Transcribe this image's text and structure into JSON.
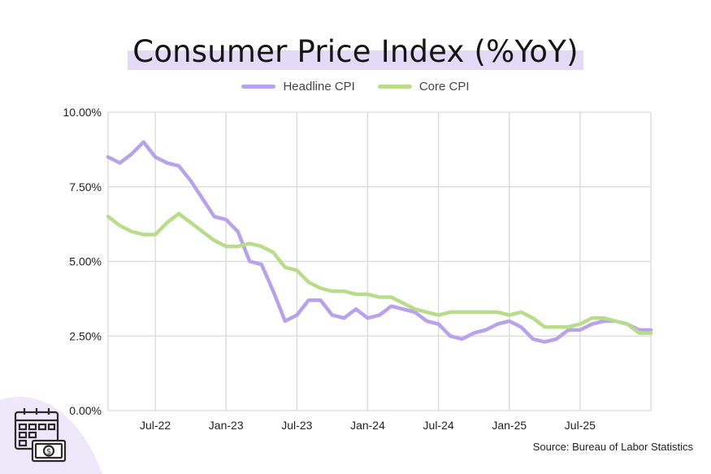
{
  "colors": {
    "headline": "#b9a2ec",
    "core": "#b8dc8a",
    "grid": "#d9d9d9",
    "highlight": "#e3daf7"
  },
  "icons": [
    "calendar-icon",
    "dollar-bill-icon"
  ],
  "source": "Source: Bureau of Labor Statistics",
  "chart_data": {
    "type": "line",
    "title": "Consumer Price Index (%YoY)",
    "xlabel": "",
    "ylabel": "",
    "ylim": [
      0,
      10
    ],
    "y_ticks": [
      0,
      2.5,
      5,
      7.5,
      10
    ],
    "y_tick_labels": [
      "0.00%",
      "2.50%",
      "5.00%",
      "7.50%",
      "10.00%"
    ],
    "x_start": "Mar-22",
    "x_ticks": [
      {
        "index": 4,
        "label": "Jul-22"
      },
      {
        "index": 10,
        "label": "Jan-23"
      },
      {
        "index": 16,
        "label": "Jul-23"
      },
      {
        "index": 22,
        "label": "Jan-24"
      },
      {
        "index": 28,
        "label": "Jul-24"
      },
      {
        "index": 34,
        "label": "Jan-25"
      },
      {
        "index": 40,
        "label": "Jul-25"
      }
    ],
    "legend": [
      "Headline CPI",
      "Core CPI"
    ],
    "series": [
      {
        "name": "Headline CPI",
        "values": [
          8.5,
          8.3,
          8.6,
          9.0,
          8.5,
          8.3,
          8.2,
          7.7,
          7.1,
          6.5,
          6.4,
          6.0,
          5.0,
          4.9,
          4.0,
          3.0,
          3.2,
          3.7,
          3.7,
          3.2,
          3.1,
          3.4,
          3.1,
          3.2,
          3.5,
          3.4,
          3.3,
          3.0,
          2.9,
          2.5,
          2.4,
          2.6,
          2.7,
          2.9,
          3.0,
          2.8,
          2.4,
          2.3,
          2.4,
          2.7,
          2.7,
          2.9,
          3.0,
          3.0,
          2.9,
          2.7,
          2.7
        ]
      },
      {
        "name": "Core CPI",
        "values": [
          6.5,
          6.2,
          6.0,
          5.9,
          5.9,
          6.3,
          6.6,
          6.3,
          6.0,
          5.7,
          5.5,
          5.5,
          5.6,
          5.5,
          5.3,
          4.8,
          4.7,
          4.3,
          4.1,
          4.0,
          4.0,
          3.9,
          3.9,
          3.8,
          3.8,
          3.6,
          3.4,
          3.3,
          3.2,
          3.3,
          3.3,
          3.3,
          3.3,
          3.3,
          3.2,
          3.3,
          3.1,
          2.8,
          2.8,
          2.8,
          2.9,
          3.1,
          3.1,
          3.0,
          2.9,
          2.6,
          2.6
        ]
      }
    ]
  }
}
